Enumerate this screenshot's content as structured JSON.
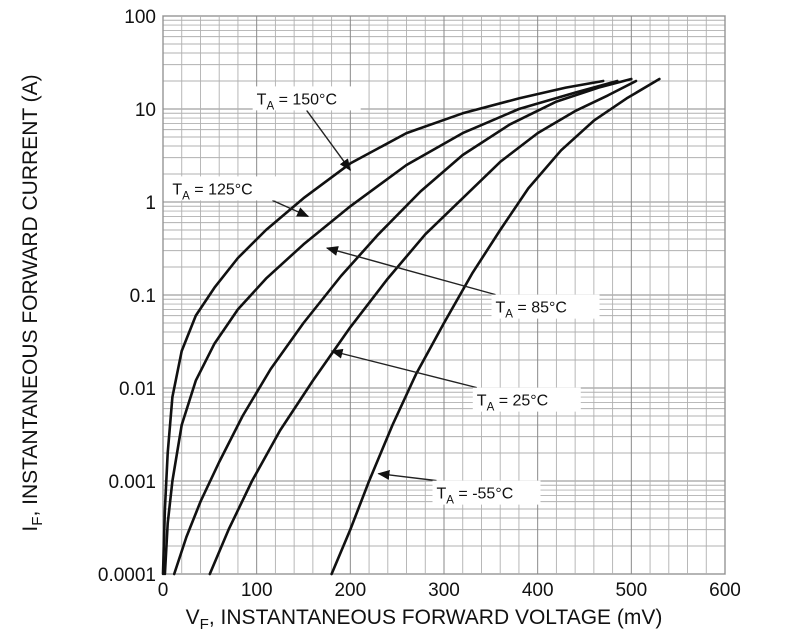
{
  "chart_data": {
    "type": "line",
    "x_scale": "linear",
    "y_scale": "log",
    "xlabel": {
      "main": "V",
      "sub": "F",
      "rest": ", INSTANTANEOUS FORWARD VOLTAGE (mV)"
    },
    "ylabel": {
      "main": "I",
      "sub": "F",
      "rest": ", INSTANTANEOUS FORWARD CURRENT (A)"
    },
    "xlim": [
      0,
      600
    ],
    "ylim": [
      0.0001,
      100
    ],
    "x_ticks": [
      0,
      100,
      200,
      300,
      400,
      500,
      600
    ],
    "x_tick_labels": [
      "0",
      "100",
      "200",
      "300",
      "400",
      "500",
      "600"
    ],
    "y_ticks": [
      0.0001,
      0.001,
      0.01,
      0.1,
      1,
      10,
      100
    ],
    "y_tick_labels": [
      "0.0001",
      "0.001",
      "0.01",
      "0.1",
      "1",
      "10",
      "100"
    ],
    "grid": true,
    "series": [
      {
        "name": "T_A = 150°C",
        "label": {
          "main": "T",
          "sub": "A",
          "rest": " = 150°C"
        },
        "x": [
          0,
          2,
          5,
          10,
          20,
          35,
          55,
          80,
          110,
          150,
          200,
          260,
          320,
          380,
          430,
          470
        ],
        "y": [
          0.0001,
          0.0005,
          0.002,
          0.008,
          0.025,
          0.06,
          0.12,
          0.25,
          0.5,
          1.1,
          2.6,
          5.5,
          9,
          13,
          17,
          20
        ]
      },
      {
        "name": "T_A = 125°C",
        "label": {
          "main": "T",
          "sub": "A",
          "rest": " = 125°C"
        },
        "x": [
          2,
          5,
          10,
          20,
          35,
          55,
          80,
          110,
          150,
          200,
          260,
          320,
          380,
          440,
          485
        ],
        "y": [
          0.0001,
          0.00035,
          0.001,
          0.004,
          0.012,
          0.03,
          0.07,
          0.15,
          0.35,
          0.9,
          2.5,
          5.5,
          10,
          15,
          20
        ]
      },
      {
        "name": "T_A = 85°C",
        "label": {
          "main": "T",
          "sub": "A",
          "rest": " = 85°C"
        },
        "x": [
          12,
          25,
          40,
          60,
          85,
          115,
          150,
          190,
          230,
          275,
          320,
          370,
          420,
          465,
          500
        ],
        "y": [
          0.0001,
          0.00025,
          0.0006,
          0.0016,
          0.005,
          0.016,
          0.05,
          0.16,
          0.45,
          1.3,
          3.2,
          6.8,
          12,
          17,
          21
        ]
      },
      {
        "name": "T_A = 25°C",
        "label": {
          "main": "T",
          "sub": "A",
          "rest": " = 25°C"
        },
        "x": [
          50,
          70,
          95,
          125,
          160,
          200,
          240,
          280,
          320,
          360,
          400,
          440,
          475,
          505
        ],
        "y": [
          0.0001,
          0.0003,
          0.001,
          0.0035,
          0.012,
          0.045,
          0.15,
          0.45,
          1.1,
          2.7,
          5.5,
          9.5,
          14,
          20
        ]
      },
      {
        "name": "T_A = -55°C",
        "label": {
          "main": "T",
          "sub": "A",
          "rest": " = -55°C"
        },
        "x": [
          180,
          200,
          220,
          245,
          270,
          300,
          330,
          360,
          390,
          425,
          460,
          495,
          530
        ],
        "y": [
          0.0001,
          0.0003,
          0.001,
          0.004,
          0.014,
          0.05,
          0.17,
          0.5,
          1.4,
          3.6,
          7.5,
          13,
          21
        ]
      }
    ],
    "annotations": [
      {
        "series": 0,
        "text": {
          "main": "T",
          "sub": "A",
          "rest": " = 150°C"
        },
        "at": [
          100,
          13
        ],
        "arrow_to": [
          200,
          2.2
        ]
      },
      {
        "series": 1,
        "text": {
          "main": "T",
          "sub": "A",
          "rest": " = 125°C"
        },
        "at": [
          10,
          1.4
        ],
        "arrow_to": [
          155,
          0.7
        ]
      },
      {
        "series": 2,
        "text": {
          "main": "T",
          "sub": "A",
          "rest": " = 85°C"
        },
        "at": [
          355,
          0.075
        ],
        "arrow_to": [
          175,
          0.32
        ]
      },
      {
        "series": 3,
        "text": {
          "main": "T",
          "sub": "A",
          "rest": " = 25°C"
        },
        "at": [
          335,
          0.0075
        ],
        "arrow_to": [
          180,
          0.025
        ]
      },
      {
        "series": 4,
        "text": {
          "main": "T",
          "sub": "A",
          "rest": " = -55°C"
        },
        "at": [
          292,
          0.00075
        ],
        "arrow_to": [
          230,
          0.0012
        ]
      }
    ]
  }
}
